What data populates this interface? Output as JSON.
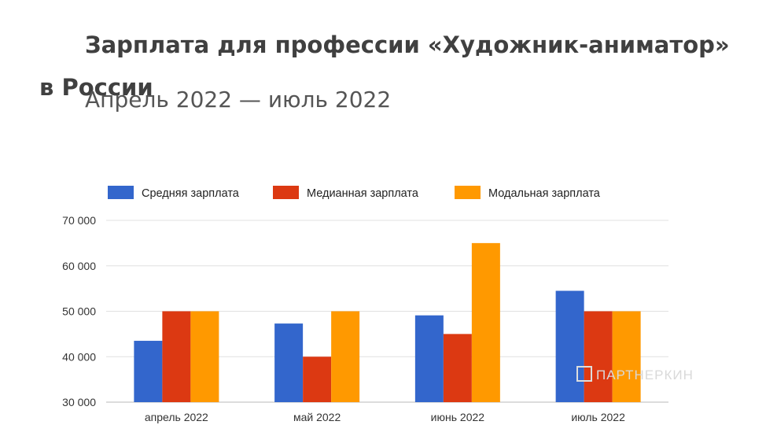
{
  "chart_data": {
    "type": "bar",
    "title": "Зарплата для профессии «Художник-аниматор» в России",
    "subtitle": "Апрель 2022 — июль 2022",
    "categories": [
      "апрель 2022",
      "май 2022",
      "июнь 2022",
      "июль 2022"
    ],
    "series": [
      {
        "name": "Средняя зарплата",
        "color": "#3366cc",
        "values": [
          43500,
          47300,
          49100,
          54500
        ]
      },
      {
        "name": "Медианная зарплата",
        "color": "#dc3912",
        "values": [
          50000,
          40000,
          45000,
          50000
        ]
      },
      {
        "name": "Модальная зарплата",
        "color": "#ff9900",
        "values": [
          50000,
          50000,
          65000,
          50000
        ]
      }
    ],
    "ylim": [
      30000,
      70000
    ],
    "yticks": [
      "30 000",
      "40 000",
      "50 000",
      "60 000",
      "70 000"
    ],
    "ytick_values": [
      30000,
      40000,
      50000,
      60000,
      70000
    ],
    "grid": true,
    "legend_position": "top"
  },
  "watermark": "ПАРТНЕРКИН"
}
